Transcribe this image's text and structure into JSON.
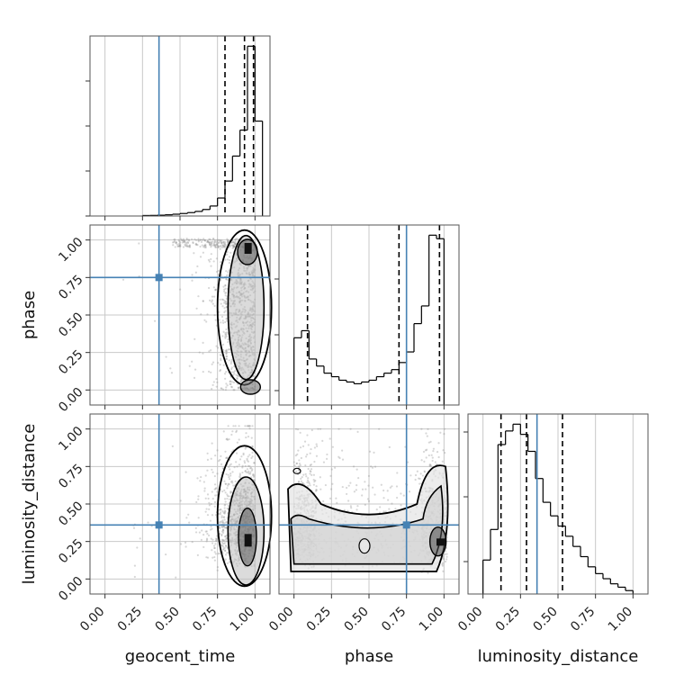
{
  "figure": {
    "type": "corner-plot",
    "parameters": [
      "geocent_time",
      "phase",
      "luminosity_distance"
    ],
    "truths": {
      "geocent_time": 0.36,
      "phase": 0.75,
      "luminosity_distance": 0.36
    },
    "truth_color": "#4682b4",
    "hist_color": "#000000",
    "grid": true,
    "ticks": [
      "0.00",
      "0.25",
      "0.50",
      "0.75",
      "1.00"
    ],
    "axis_range": [
      -0.1,
      1.1
    ]
  },
  "chart_data": [
    {
      "type": "histogram",
      "xlabel": "geocent_time",
      "bins_edges": [
        0.25,
        0.3,
        0.35,
        0.4,
        0.45,
        0.5,
        0.55,
        0.6,
        0.65,
        0.7,
        0.75,
        0.8,
        0.85,
        0.9,
        0.95,
        1.0,
        1.05
      ],
      "values": [
        0.5,
        0.6,
        0.8,
        1.2,
        1.8,
        2.5,
        3.4,
        4.6,
        6.5,
        10,
        18,
        35,
        60,
        86,
        170,
        95
      ],
      "quantiles": [
        0.8,
        0.93,
        0.99
      ],
      "truth": 0.36
    },
    {
      "type": "contour-scatter",
      "xlabel": "geocent_time",
      "ylabel": "phase",
      "truth": [
        0.36,
        0.75
      ],
      "peak": [
        0.95,
        0.97
      ],
      "secondary_peak": [
        0.97,
        0.02
      ]
    },
    {
      "type": "histogram",
      "xlabel": "phase",
      "bins_edges": [
        0.0,
        0.05,
        0.1,
        0.15,
        0.2,
        0.25,
        0.3,
        0.35,
        0.4,
        0.45,
        0.5,
        0.55,
        0.6,
        0.65,
        0.7,
        0.75,
        0.8,
        0.85,
        0.9,
        0.95,
        1.0
      ],
      "values": [
        38,
        42,
        26,
        22,
        18,
        16,
        14,
        13,
        12,
        13,
        14,
        16,
        18,
        20,
        24,
        30,
        46,
        56,
        96,
        94
      ],
      "quantiles": [
        0.09,
        0.7,
        0.97
      ],
      "truth": 0.75
    },
    {
      "type": "contour-scatter",
      "xlabel": "geocent_time",
      "ylabel": "luminosity_distance",
      "truth": [
        0.36,
        0.36
      ],
      "peak": [
        0.95,
        0.25
      ]
    },
    {
      "type": "contour-scatter",
      "xlabel": "phase",
      "ylabel": "luminosity_distance",
      "truth": [
        0.75,
        0.36
      ],
      "peaks": [
        [
          0.97,
          0.24
        ],
        [
          0.02,
          0.24
        ]
      ]
    },
    {
      "type": "histogram",
      "xlabel": "luminosity_distance",
      "bins_edges": [
        0.0,
        0.05,
        0.1,
        0.15,
        0.2,
        0.25,
        0.3,
        0.35,
        0.4,
        0.45,
        0.5,
        0.55,
        0.6,
        0.65,
        0.7,
        0.75,
        0.8,
        0.85,
        0.9,
        0.95,
        1.0
      ],
      "values": [
        20,
        38,
        88,
        96,
        100,
        94,
        84,
        68,
        54,
        46,
        40,
        34,
        28,
        22,
        16,
        12,
        9,
        6,
        4,
        2
      ],
      "quantiles": [
        0.12,
        0.29,
        0.53
      ],
      "truth": 0.36
    }
  ]
}
